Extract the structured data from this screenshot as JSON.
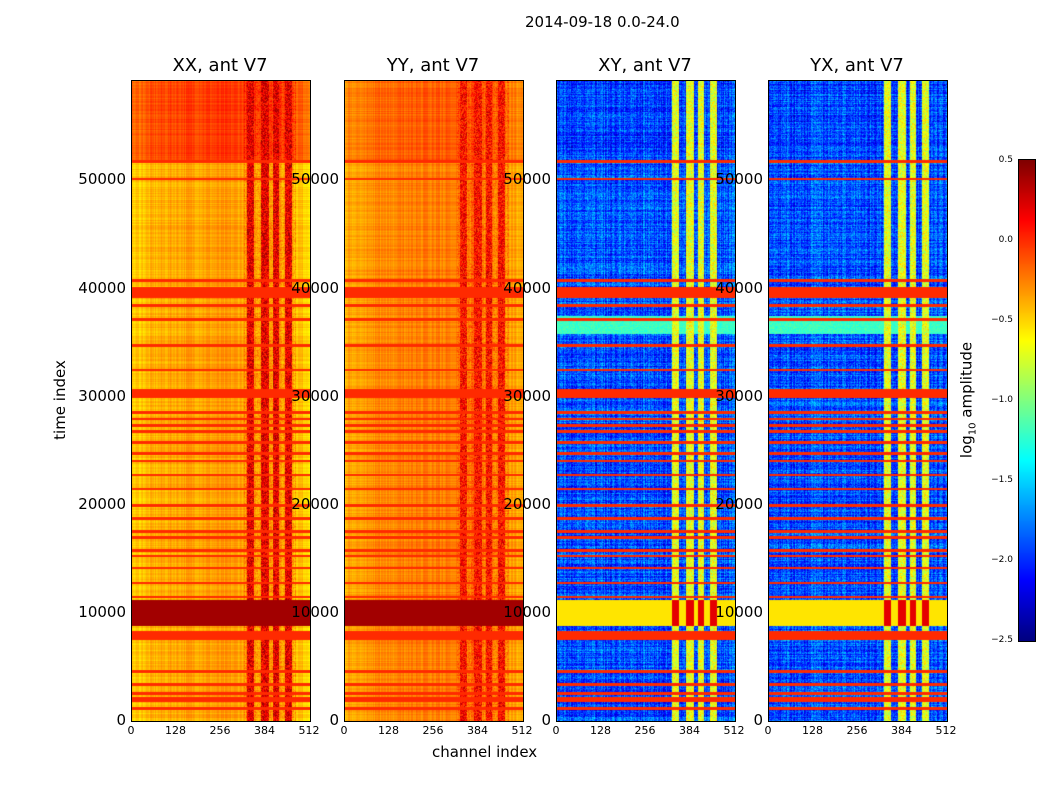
{
  "chart_data": {
    "type": "heatmap",
    "title": "2014-09-18 0.0-24.0",
    "xlabel": "channel index",
    "ylabel": "time index",
    "xlim": [
      0,
      512
    ],
    "ylim": [
      0,
      59200
    ],
    "xticks": [
      "0",
      "128",
      "256",
      "384",
      "512"
    ],
    "yticks": [
      "0",
      "10000",
      "20000",
      "30000",
      "40000",
      "50000"
    ],
    "colormap": "jet",
    "colorbar": {
      "label": "log10 amplitude",
      "range": [
        -2.5,
        0.5
      ],
      "ticks": [
        "0.5",
        "0.0",
        "−0.5",
        "−1.0",
        "−1.5",
        "−2.0",
        "−2.5"
      ]
    },
    "panels": [
      {
        "title": "XX, ant V7",
        "base_log_amp": -0.35,
        "upper_block_log_amp": -0.05,
        "rfi_channel_log_amp": 0.2
      },
      {
        "title": "YY, ant V7",
        "base_log_amp": -0.25,
        "upper_block_log_amp": -0.15,
        "rfi_channel_log_amp": 0.1
      },
      {
        "title": "XY, ant V7",
        "base_log_amp": -1.9,
        "upper_block_log_amp": -1.95,
        "rfi_channel_log_amp": -0.7
      },
      {
        "title": "YX, ant V7",
        "base_log_amp": -1.9,
        "upper_block_log_amp": -1.95,
        "rfi_channel_log_amp": -0.7
      }
    ],
    "rfi_channel_ranges": [
      [
        330,
        350
      ],
      [
        370,
        392
      ],
      [
        404,
        422
      ],
      [
        440,
        458
      ]
    ],
    "flagged_time_ranges": [
      [
        7500,
        8400
      ],
      [
        29900,
        30800
      ],
      [
        1800,
        2300
      ],
      [
        39200,
        40200
      ]
    ],
    "flag_lines": [
      1200,
      2600,
      3400,
      4600,
      11500,
      12800,
      14200,
      15300,
      15800,
      17000,
      17600,
      18800,
      20000,
      21500,
      22800,
      24100,
      24800,
      25800,
      26800,
      27400,
      28000,
      28600,
      32500,
      34800,
      37200,
      38500,
      40800,
      50200,
      51800
    ],
    "high_time_ranges": [
      [
        8800,
        11200
      ]
    ],
    "mid_time_ranges": [
      [
        35800,
        37500
      ]
    ]
  }
}
